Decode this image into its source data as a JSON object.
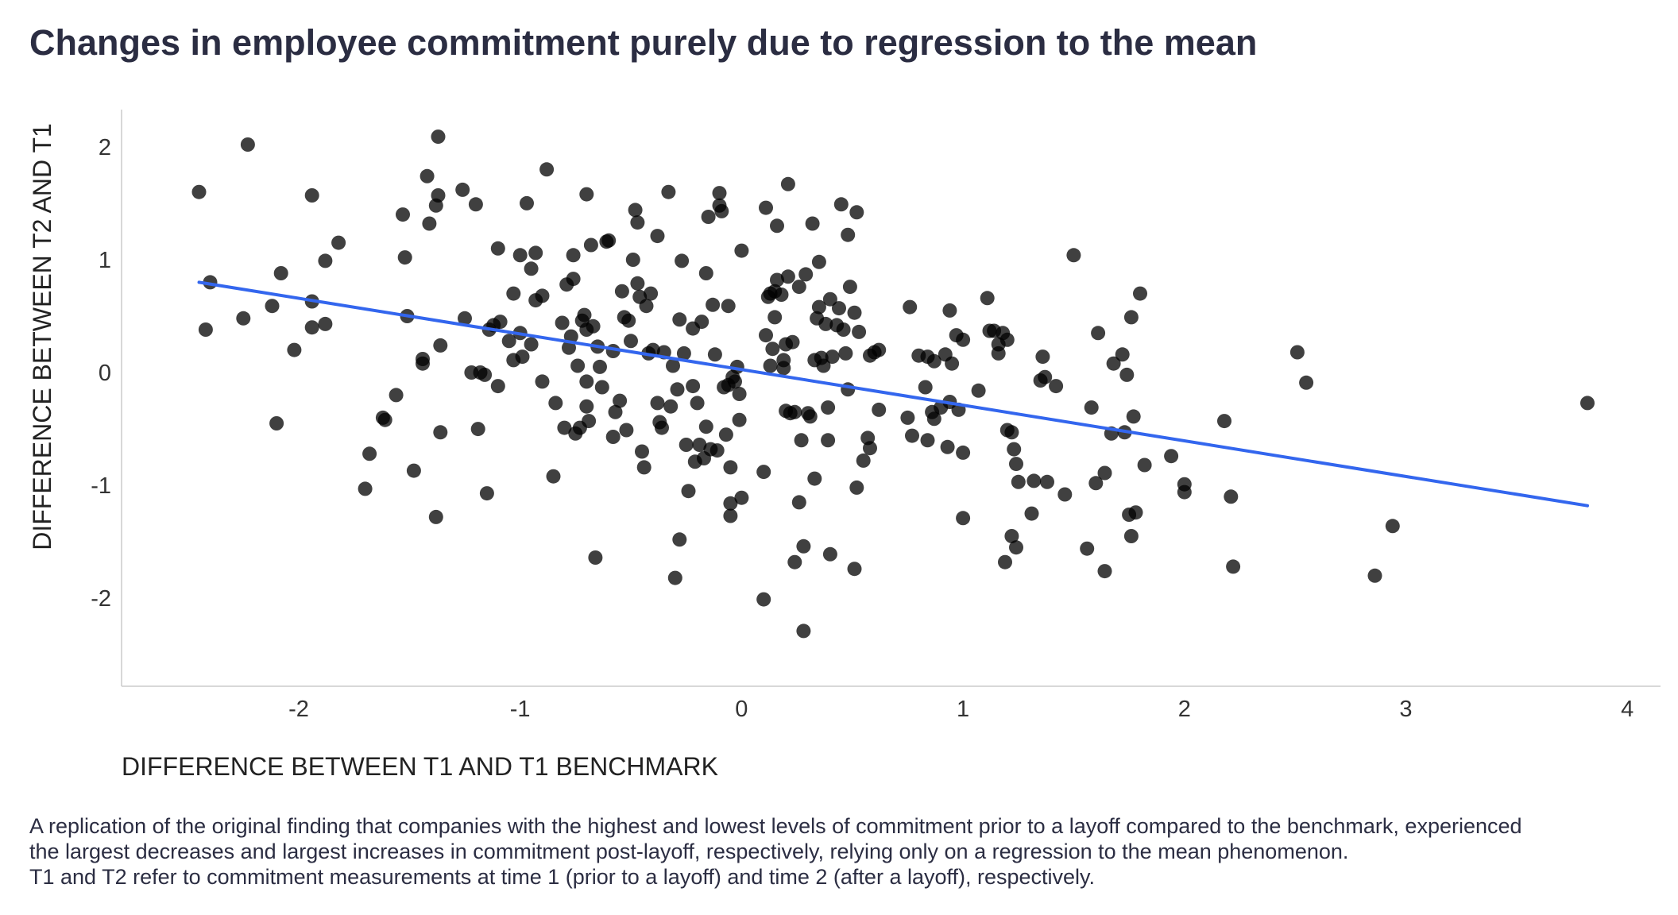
{
  "chart_data": {
    "type": "scatter",
    "title": "Changes in employee commitment purely due to regression to the mean",
    "xlabel": "DIFFERENCE BETWEEN T1 AND T1 BENCHMARK",
    "ylabel": "DIFFERENCE BETWEEN T2 AND T1",
    "xlim": [
      -2.8,
      4.15
    ],
    "ylim": [
      -2.78,
      2.33
    ],
    "x_ticks": [
      -2,
      -1,
      0,
      1,
      2,
      3,
      4
    ],
    "y_ticks": [
      -2,
      -1,
      0,
      1,
      2
    ],
    "x_tick_labels": [
      "-2",
      "-1",
      "0",
      "1",
      "2",
      "3",
      "4"
    ],
    "y_tick_labels": [
      "-2",
      "-1",
      "0",
      "1",
      "2"
    ],
    "grid": false,
    "point_color": "#000000",
    "point_opacity": 0.75,
    "line_color": "#3366ee",
    "trend_line": {
      "x": [
        -2.45,
        3.82
      ],
      "y": [
        0.8,
        -1.18
      ]
    },
    "points": [
      [
        -2.45,
        1.6
      ],
      [
        -2.42,
        0.38
      ],
      [
        -2.4,
        0.8
      ],
      [
        -2.25,
        0.48
      ],
      [
        -2.23,
        2.02
      ],
      [
        -2.12,
        0.59
      ],
      [
        -2.1,
        -0.45
      ],
      [
        -2.08,
        0.88
      ],
      [
        -2.02,
        0.2
      ],
      [
        -1.94,
        1.57
      ],
      [
        -1.94,
        0.63
      ],
      [
        -1.94,
        0.4
      ],
      [
        -1.88,
        0.99
      ],
      [
        -1.88,
        0.43
      ],
      [
        -1.82,
        1.15
      ],
      [
        -1.7,
        -1.03
      ],
      [
        -1.68,
        -0.72
      ],
      [
        -1.62,
        -0.4
      ],
      [
        -1.61,
        -0.42
      ],
      [
        -1.56,
        -0.2
      ],
      [
        -1.53,
        1.4
      ],
      [
        -1.52,
        1.02
      ],
      [
        -1.51,
        0.5
      ],
      [
        -1.48,
        -0.87
      ],
      [
        -1.44,
        0.12
      ],
      [
        -1.44,
        0.08
      ],
      [
        -1.42,
        1.74
      ],
      [
        -1.41,
        1.32
      ],
      [
        -1.38,
        1.48
      ],
      [
        -1.37,
        1.57
      ],
      [
        -1.37,
        2.09
      ],
      [
        -1.36,
        0.24
      ],
      [
        -1.36,
        -0.53
      ],
      [
        -1.38,
        -1.28
      ],
      [
        -1.26,
        1.62
      ],
      [
        -1.25,
        0.48
      ],
      [
        -1.22,
        0.0
      ],
      [
        -1.2,
        1.49
      ],
      [
        -1.19,
        -0.5
      ],
      [
        -1.18,
        0.0
      ],
      [
        -1.16,
        -0.02
      ],
      [
        -1.15,
        -1.07
      ],
      [
        -1.14,
        0.38
      ],
      [
        -1.12,
        0.42
      ],
      [
        -1.1,
        -0.12
      ],
      [
        -1.1,
        1.1
      ],
      [
        -1.09,
        0.45
      ],
      [
        -1.05,
        0.28
      ],
      [
        -1.03,
        0.11
      ],
      [
        -1.03,
        0.7
      ],
      [
        -1.0,
        1.04
      ],
      [
        -1.0,
        0.35
      ],
      [
        -0.99,
        0.14
      ],
      [
        -0.97,
        1.5
      ],
      [
        -0.95,
        0.25
      ],
      [
        -0.95,
        0.92
      ],
      [
        -0.93,
        1.06
      ],
      [
        -0.93,
        0.64
      ],
      [
        -0.9,
        0.68
      ],
      [
        -0.9,
        -0.08
      ],
      [
        -0.88,
        1.8
      ],
      [
        -0.85,
        -0.92
      ],
      [
        -0.84,
        -0.27
      ],
      [
        -0.81,
        0.44
      ],
      [
        -0.8,
        -0.49
      ],
      [
        -0.79,
        0.78
      ],
      [
        -0.78,
        0.22
      ],
      [
        -0.77,
        0.32
      ],
      [
        -0.76,
        0.83
      ],
      [
        -0.76,
        1.04
      ],
      [
        -0.75,
        -0.54
      ],
      [
        -0.74,
        0.06
      ],
      [
        -0.73,
        -0.49
      ],
      [
        -0.72,
        0.46
      ],
      [
        -0.71,
        0.51
      ],
      [
        -0.7,
        0.38
      ],
      [
        -0.7,
        -0.08
      ],
      [
        -0.7,
        -0.3
      ],
      [
        -0.7,
        1.58
      ],
      [
        -0.69,
        -0.43
      ],
      [
        -0.68,
        1.13
      ],
      [
        -0.67,
        0.41
      ],
      [
        -0.66,
        -1.64
      ],
      [
        -0.65,
        0.23
      ],
      [
        -0.64,
        0.05
      ],
      [
        -0.63,
        -0.13
      ],
      [
        -0.61,
        1.16
      ],
      [
        -0.6,
        1.17
      ],
      [
        -0.58,
        -0.57
      ],
      [
        -0.58,
        0.19
      ],
      [
        -0.57,
        -0.35
      ],
      [
        -0.55,
        -0.25
      ],
      [
        -0.54,
        0.72
      ],
      [
        -0.53,
        0.49
      ],
      [
        -0.52,
        -0.51
      ],
      [
        -0.51,
        0.46
      ],
      [
        -0.5,
        0.28
      ],
      [
        -0.49,
        1.0
      ],
      [
        -0.48,
        1.44
      ],
      [
        -0.47,
        1.33
      ],
      [
        -0.47,
        0.79
      ],
      [
        -0.46,
        0.67
      ],
      [
        -0.45,
        -0.7
      ],
      [
        -0.44,
        -0.84
      ],
      [
        -0.43,
        0.59
      ],
      [
        -0.42,
        0.17
      ],
      [
        -0.41,
        0.7
      ],
      [
        -0.4,
        0.2
      ],
      [
        -0.38,
        1.21
      ],
      [
        -0.38,
        -0.27
      ],
      [
        -0.37,
        -0.44
      ],
      [
        -0.36,
        -0.49
      ],
      [
        -0.35,
        0.18
      ],
      [
        -0.33,
        1.6
      ],
      [
        -0.32,
        -0.3
      ],
      [
        -0.31,
        0.06
      ],
      [
        -0.3,
        -1.82
      ],
      [
        -0.29,
        -0.15
      ],
      [
        -0.28,
        -1.48
      ],
      [
        -0.28,
        0.47
      ],
      [
        -0.27,
        0.99
      ],
      [
        -0.26,
        0.17
      ],
      [
        -0.25,
        -0.64
      ],
      [
        -0.24,
        -1.05
      ],
      [
        -0.22,
        -0.12
      ],
      [
        -0.22,
        0.39
      ],
      [
        -0.21,
        -0.79
      ],
      [
        -0.2,
        -0.27
      ],
      [
        -0.19,
        -0.64
      ],
      [
        -0.18,
        0.45
      ],
      [
        -0.17,
        -0.76
      ],
      [
        -0.16,
        0.88
      ],
      [
        -0.16,
        -0.48
      ],
      [
        -0.15,
        1.38
      ],
      [
        -0.14,
        -0.68
      ],
      [
        -0.13,
        0.6
      ],
      [
        -0.12,
        0.16
      ],
      [
        -0.11,
        -0.69
      ],
      [
        -0.1,
        1.59
      ],
      [
        -0.1,
        1.48
      ],
      [
        -0.09,
        1.43
      ],
      [
        -0.08,
        -0.13
      ],
      [
        -0.07,
        -0.55
      ],
      [
        -0.06,
        0.59
      ],
      [
        -0.06,
        -0.11
      ],
      [
        -0.05,
        -0.84
      ],
      [
        -0.05,
        -1.27
      ],
      [
        -0.05,
        -1.16
      ],
      [
        -0.04,
        -0.04
      ],
      [
        -0.03,
        -0.08
      ],
      [
        -0.02,
        0.05
      ],
      [
        -0.01,
        -0.42
      ],
      [
        -0.01,
        -0.19
      ],
      [
        0.0,
        -1.11
      ],
      [
        0.0,
        1.08
      ],
      [
        0.1,
        -0.88
      ],
      [
        0.1,
        -2.01
      ],
      [
        0.11,
        0.33
      ],
      [
        0.11,
        1.46
      ],
      [
        0.12,
        0.67
      ],
      [
        0.13,
        0.7
      ],
      [
        0.13,
        0.06
      ],
      [
        0.14,
        0.21
      ],
      [
        0.15,
        0.49
      ],
      [
        0.15,
        0.72
      ],
      [
        0.16,
        1.3
      ],
      [
        0.16,
        0.82
      ],
      [
        0.18,
        0.69
      ],
      [
        0.19,
        0.11
      ],
      [
        0.19,
        0.04
      ],
      [
        0.2,
        -0.34
      ],
      [
        0.2,
        0.25
      ],
      [
        0.21,
        0.85
      ],
      [
        0.21,
        1.67
      ],
      [
        0.22,
        -0.36
      ],
      [
        0.23,
        0.27
      ],
      [
        0.24,
        -0.35
      ],
      [
        0.24,
        -1.68
      ],
      [
        0.26,
        -1.15
      ],
      [
        0.26,
        0.76
      ],
      [
        0.27,
        -0.6
      ],
      [
        0.28,
        -2.29
      ],
      [
        0.28,
        -1.54
      ],
      [
        0.29,
        0.87
      ],
      [
        0.3,
        -0.36
      ],
      [
        0.31,
        -0.39
      ],
      [
        0.32,
        1.32
      ],
      [
        0.33,
        -0.94
      ],
      [
        0.33,
        0.11
      ],
      [
        0.34,
        0.48
      ],
      [
        0.35,
        0.98
      ],
      [
        0.35,
        0.58
      ],
      [
        0.36,
        0.13
      ],
      [
        0.37,
        0.06
      ],
      [
        0.38,
        0.43
      ],
      [
        0.39,
        -0.6
      ],
      [
        0.39,
        -0.31
      ],
      [
        0.4,
        0.65
      ],
      [
        0.4,
        -1.61
      ],
      [
        0.41,
        0.14
      ],
      [
        0.43,
        0.42
      ],
      [
        0.44,
        0.57
      ],
      [
        0.45,
        1.49
      ],
      [
        0.46,
        0.38
      ],
      [
        0.47,
        0.17
      ],
      [
        0.48,
        -0.15
      ],
      [
        0.48,
        1.22
      ],
      [
        0.49,
        0.76
      ],
      [
        0.51,
        -1.74
      ],
      [
        0.51,
        0.53
      ],
      [
        0.52,
        -1.02
      ],
      [
        0.52,
        1.42
      ],
      [
        0.53,
        0.36
      ],
      [
        0.55,
        -0.78
      ],
      [
        0.57,
        -0.58
      ],
      [
        0.58,
        0.15
      ],
      [
        0.58,
        -0.67
      ],
      [
        0.6,
        0.18
      ],
      [
        0.62,
        -0.33
      ],
      [
        0.62,
        0.2
      ],
      [
        0.75,
        -0.4
      ],
      [
        0.76,
        0.58
      ],
      [
        0.77,
        -0.56
      ],
      [
        0.8,
        0.15
      ],
      [
        0.83,
        -0.13
      ],
      [
        0.84,
        -0.6
      ],
      [
        0.84,
        0.14
      ],
      [
        0.86,
        -0.35
      ],
      [
        0.87,
        0.1
      ],
      [
        0.87,
        -0.41
      ],
      [
        0.9,
        -0.31
      ],
      [
        0.92,
        0.16
      ],
      [
        0.93,
        -0.66
      ],
      [
        0.94,
        -0.26
      ],
      [
        0.94,
        0.55
      ],
      [
        0.95,
        0.08
      ],
      [
        0.97,
        0.33
      ],
      [
        0.98,
        -0.33
      ],
      [
        1.0,
        -0.71
      ],
      [
        1.0,
        -1.29
      ],
      [
        1.0,
        0.29
      ],
      [
        1.07,
        -0.16
      ],
      [
        1.11,
        0.66
      ],
      [
        1.12,
        0.37
      ],
      [
        1.14,
        0.37
      ],
      [
        1.16,
        0.25
      ],
      [
        1.16,
        0.17
      ],
      [
        1.18,
        0.35
      ],
      [
        1.19,
        -1.68
      ],
      [
        1.2,
        0.29
      ],
      [
        1.2,
        -0.51
      ],
      [
        1.22,
        -0.53
      ],
      [
        1.22,
        -1.45
      ],
      [
        1.23,
        -0.68
      ],
      [
        1.24,
        -0.81
      ],
      [
        1.24,
        -1.55
      ],
      [
        1.25,
        -0.97
      ],
      [
        1.31,
        -1.25
      ],
      [
        1.32,
        -0.96
      ],
      [
        1.35,
        -0.07
      ],
      [
        1.36,
        0.14
      ],
      [
        1.37,
        -0.04
      ],
      [
        1.38,
        -0.97
      ],
      [
        1.42,
        -0.12
      ],
      [
        1.46,
        -1.08
      ],
      [
        1.5,
        1.04
      ],
      [
        1.56,
        -1.56
      ],
      [
        1.58,
        -0.31
      ],
      [
        1.6,
        -0.98
      ],
      [
        1.61,
        0.35
      ],
      [
        1.64,
        -1.76
      ],
      [
        1.64,
        -0.89
      ],
      [
        1.67,
        -0.54
      ],
      [
        1.68,
        0.08
      ],
      [
        1.72,
        0.16
      ],
      [
        1.73,
        -0.53
      ],
      [
        1.74,
        -0.02
      ],
      [
        1.75,
        -1.26
      ],
      [
        1.76,
        -1.45
      ],
      [
        1.76,
        0.49
      ],
      [
        1.77,
        -0.39
      ],
      [
        1.78,
        -1.24
      ],
      [
        1.8,
        0.7
      ],
      [
        1.82,
        -0.82
      ],
      [
        1.94,
        -0.74
      ],
      [
        2.0,
        -1.06
      ],
      [
        2.0,
        -0.99
      ],
      [
        2.18,
        -0.43
      ],
      [
        2.21,
        -1.1
      ],
      [
        2.22,
        -1.72
      ],
      [
        2.51,
        0.18
      ],
      [
        2.55,
        -0.09
      ],
      [
        2.86,
        -1.8
      ],
      [
        2.94,
        -1.36
      ],
      [
        3.82,
        -0.27
      ]
    ]
  },
  "caption": {
    "line1": "A replication of the original finding that companies with the highest and lowest levels of commitment prior to a layoff compared to the benchmark, experienced",
    "line2": "the largest decreases and largest increases in commitment post-layoff, respectively, relying only on a regression to the mean phenomenon.",
    "line3": "T1 and T2 refer to commitment measurements at time 1 (prior to a layoff) and time 2 (after a layoff), respectively."
  }
}
